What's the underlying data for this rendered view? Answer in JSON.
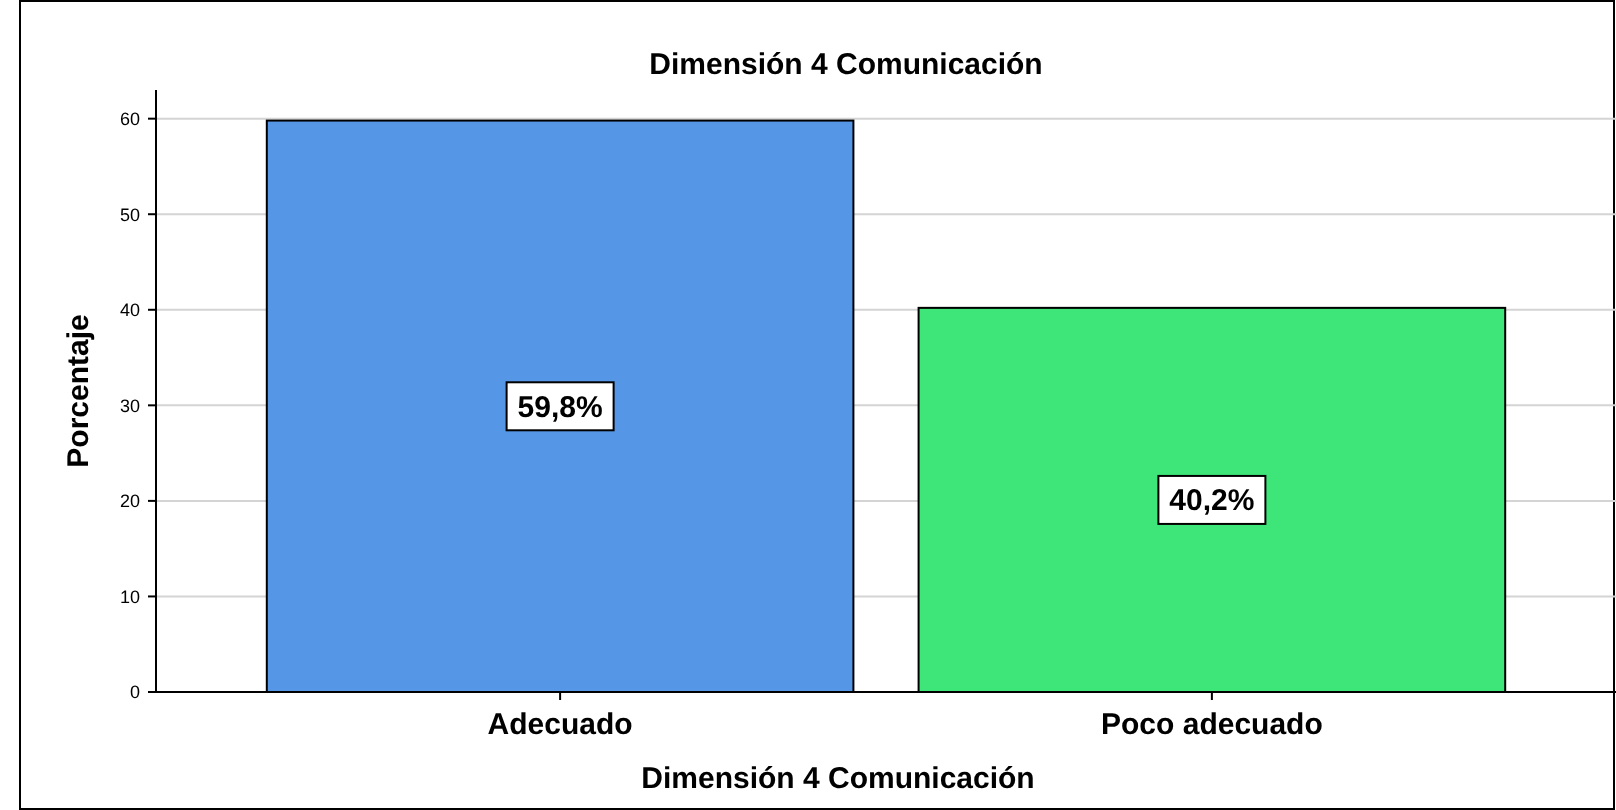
{
  "chart_data": {
    "type": "bar",
    "title": "Dimensión 4 Comunicación",
    "xlabel": "Dimensión 4 Comunicación",
    "ylabel": "Porcentaje",
    "categories": [
      "Adecuado",
      "Poco adecuado"
    ],
    "values": [
      59.8,
      40.2
    ],
    "colors": [
      "#5596e6",
      "#3ee67a"
    ],
    "value_labels": [
      "59,8%",
      "40,2%"
    ],
    "ylim": [
      0,
      63
    ],
    "yticks": [
      0,
      10,
      20,
      30,
      40,
      50,
      60
    ],
    "grid": "y"
  }
}
